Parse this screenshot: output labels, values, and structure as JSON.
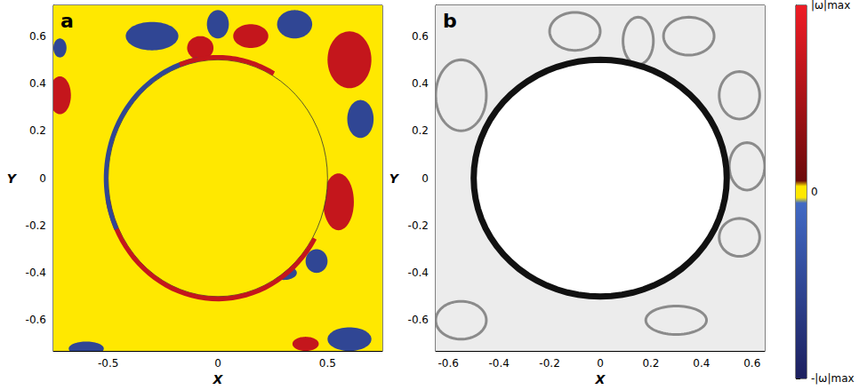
{
  "chart_data": [
    {
      "type": "vorticity",
      "panel": "a",
      "xlabel": "X",
      "ylabel": "Y",
      "xlim": [
        -0.75,
        0.75
      ],
      "ylim": [
        -0.73,
        0.73
      ],
      "xticks": [
        -0.5,
        0,
        0.5
      ],
      "yticks": [
        -0.6,
        -0.4,
        -0.2,
        0,
        0.2,
        0.4,
        0.6
      ],
      "circle": {
        "x": 0,
        "y": 0,
        "r": 0.5,
        "w": 0
      },
      "background_w": 0,
      "arcs": [
        {
          "start": 190,
          "end": 330,
          "w": 0.7
        },
        {
          "start": 100,
          "end": 205,
          "w": -0.5
        },
        {
          "start": 60,
          "end": 110,
          "w": 0.7
        }
      ],
      "vortices": [
        {
          "x": -0.3,
          "y": 0.6,
          "rx": 0.12,
          "ry": 0.06,
          "w": -0.5
        },
        {
          "x": -0.08,
          "y": 0.55,
          "rx": 0.06,
          "ry": 0.05,
          "w": 0.7
        },
        {
          "x": 0.0,
          "y": 0.65,
          "rx": 0.05,
          "ry": 0.06,
          "w": -0.5
        },
        {
          "x": 0.15,
          "y": 0.6,
          "rx": 0.08,
          "ry": 0.05,
          "w": 0.7
        },
        {
          "x": 0.35,
          "y": 0.65,
          "rx": 0.08,
          "ry": 0.06,
          "w": -0.5
        },
        {
          "x": 0.6,
          "y": 0.5,
          "rx": 0.1,
          "ry": 0.12,
          "w": 0.7
        },
        {
          "x": 0.65,
          "y": 0.25,
          "rx": 0.06,
          "ry": 0.08,
          "w": -0.5
        },
        {
          "x": 0.55,
          "y": -0.1,
          "rx": 0.07,
          "ry": 0.12,
          "w": 0.7
        },
        {
          "x": 0.45,
          "y": -0.35,
          "rx": 0.05,
          "ry": 0.05,
          "w": -0.5
        },
        {
          "x": 0.3,
          "y": -0.4,
          "rx": 0.06,
          "ry": 0.03,
          "w": -0.5
        },
        {
          "x": -0.72,
          "y": 0.35,
          "rx": 0.05,
          "ry": 0.08,
          "w": 0.7
        },
        {
          "x": -0.72,
          "y": 0.55,
          "rx": 0.03,
          "ry": 0.04,
          "w": -0.5
        },
        {
          "x": 0.6,
          "y": -0.68,
          "rx": 0.1,
          "ry": 0.05,
          "w": -0.5
        },
        {
          "x": 0.4,
          "y": -0.7,
          "rx": 0.06,
          "ry": 0.03,
          "w": 0.7
        },
        {
          "x": -0.6,
          "y": -0.72,
          "rx": 0.08,
          "ry": 0.03,
          "w": -0.5
        }
      ]
    },
    {
      "type": "density",
      "panel": "b",
      "xlabel": "X",
      "ylabel": "Y",
      "xlim": [
        -0.65,
        0.65
      ],
      "ylim": [
        -0.73,
        0.73
      ],
      "xticks": [
        -0.6,
        -0.4,
        -0.2,
        0,
        0.2,
        0.4,
        0.6
      ],
      "yticks": [
        -0.6,
        -0.4,
        -0.2,
        0,
        0.2,
        0.4,
        0.6
      ],
      "circle": {
        "x": 0,
        "y": 0,
        "r": 0.5
      },
      "features": [
        {
          "x": -0.1,
          "y": 0.62,
          "rx": 0.1,
          "ry": 0.08
        },
        {
          "x": 0.15,
          "y": 0.58,
          "rx": 0.06,
          "ry": 0.1
        },
        {
          "x": 0.35,
          "y": 0.6,
          "rx": 0.1,
          "ry": 0.08
        },
        {
          "x": 0.55,
          "y": 0.35,
          "rx": 0.08,
          "ry": 0.1
        },
        {
          "x": 0.58,
          "y": 0.05,
          "rx": 0.07,
          "ry": 0.1
        },
        {
          "x": 0.55,
          "y": -0.25,
          "rx": 0.08,
          "ry": 0.08
        },
        {
          "x": -0.55,
          "y": 0.35,
          "rx": 0.1,
          "ry": 0.15
        },
        {
          "x": 0.3,
          "y": -0.6,
          "rx": 0.12,
          "ry": 0.06
        },
        {
          "x": -0.55,
          "y": -0.6,
          "rx": 0.1,
          "ry": 0.08
        }
      ]
    },
    {
      "type": "colorbar",
      "ylim": [
        -1,
        1
      ],
      "yticks": [
        {
          "value": -1,
          "label": "-|ω|max"
        },
        0,
        {
          "value": 1,
          "label": "|ω|max"
        }
      ],
      "stops": [
        {
          "value": 1,
          "color": "#ee1c25"
        },
        {
          "value": 0.06,
          "color": "#6b0a0a"
        },
        {
          "value": 0.03,
          "color": "#ffe800"
        },
        {
          "value": -0.03,
          "color": "#ffe800"
        },
        {
          "value": -0.06,
          "color": "#4169c4"
        },
        {
          "value": -1,
          "color": "#1c1f5e"
        }
      ]
    }
  ]
}
